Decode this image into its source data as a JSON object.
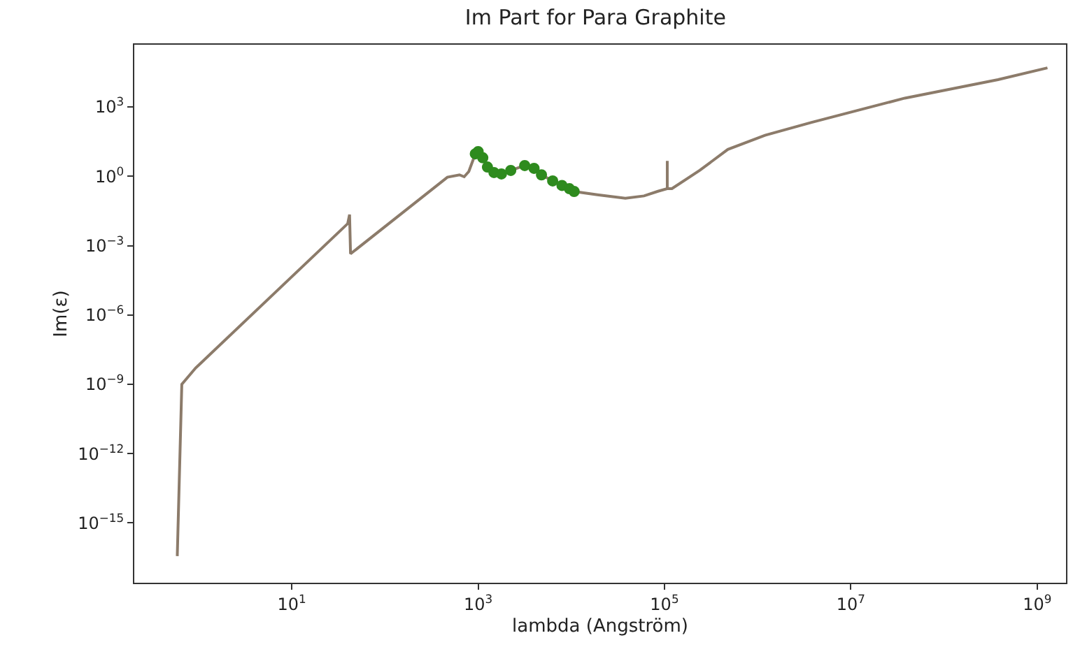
{
  "chart_data": {
    "type": "line",
    "title": "Im Part for Para Graphite",
    "xlabel": "lambda (Angström)",
    "ylabel": "Im(ε)",
    "log": "xy",
    "xlim": [
      0.204,
      2040000000
    ],
    "ylim": [
      2.6e-18,
      490000
    ],
    "xticks": [
      {
        "value": 10,
        "label": "10$^{1}$"
      },
      {
        "value": 1000,
        "label": "10$^{3}$"
      },
      {
        "value": 100000,
        "label": "10$^{5}$"
      },
      {
        "value": 10000000,
        "label": "10$^{7}$"
      },
      {
        "value": 1000000000,
        "label": "10$^{9}$"
      }
    ],
    "yticks": [
      {
        "value": 1e-15,
        "label": "10$^{−15}$"
      },
      {
        "value": 1e-12,
        "label": "10$^{−12}$"
      },
      {
        "value": 1e-09,
        "label": "10$^{−9}$"
      },
      {
        "value": 1e-06,
        "label": "10$^{−6}$"
      },
      {
        "value": 0.001,
        "label": "10$^{−3}$"
      },
      {
        "value": 1,
        "label": "10$^{0}$"
      },
      {
        "value": 1000,
        "label": "10$^{3}$"
      }
    ],
    "series": [
      {
        "color": "#8c7b6a",
        "marker": "none",
        "x": [
          0.59,
          0.66,
          0.93,
          1.05,
          39.8,
          41.7,
          42.7,
          468,
          631,
          708,
          794,
          933,
          1000,
          1122,
          1259,
          1479,
          1778,
          2239,
          3162,
          3981,
          4786,
          6310,
          7943,
          9550,
          10720,
          19050,
          38020,
          60260,
          85110,
          107150,
          107150,
          107150,
          120200,
          239900,
          478600,
          1200000,
          3800000,
          38000000,
          380000000,
          1290000000
        ],
        "values": [
          3.7e-17,
          1e-09,
          5.1e-09,
          8.1e-09,
          0.0089,
          0.022,
          0.00044,
          0.91,
          1.15,
          0.95,
          1.6,
          9.3,
          11.7,
          6.3,
          2.5,
          1.45,
          1.26,
          1.78,
          2.9,
          2.2,
          1.15,
          0.63,
          0.4,
          0.29,
          0.22,
          0.158,
          0.112,
          0.141,
          0.224,
          0.29,
          4.6,
          0.29,
          0.29,
          1.82,
          14.5,
          59,
          214,
          2400,
          15100,
          49000
        ]
      },
      {
        "type": "scatter",
        "color": "#2e8b1e",
        "marker": "circle",
        "x": [
          933,
          1000,
          1122,
          1259,
          1479,
          1778,
          2239,
          3162,
          3981,
          4786,
          6310,
          7943,
          9550,
          10720
        ],
        "values": [
          9.3,
          11.7,
          6.3,
          2.5,
          1.45,
          1.26,
          1.78,
          2.9,
          2.2,
          1.15,
          0.63,
          0.4,
          0.29,
          0.22
        ]
      }
    ]
  }
}
